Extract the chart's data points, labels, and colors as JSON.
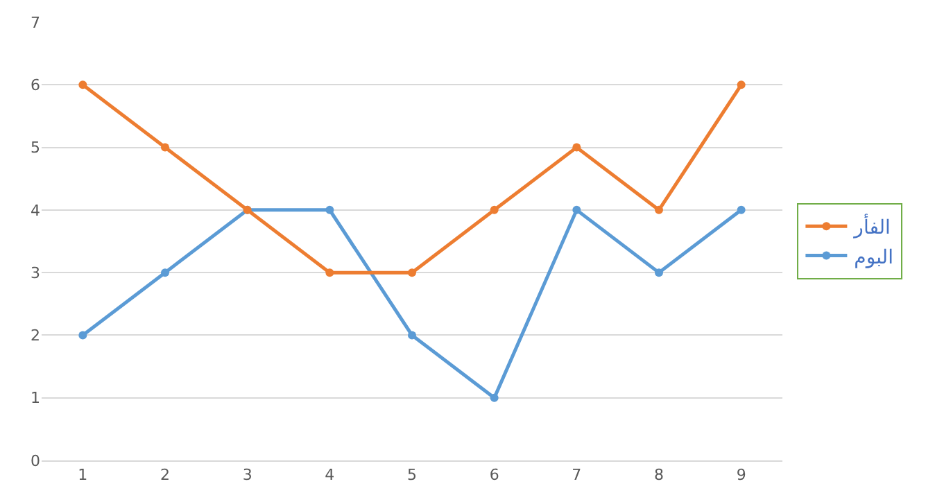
{
  "chart_data": {
    "type": "line",
    "x": [
      1,
      2,
      3,
      4,
      5,
      6,
      7,
      8,
      9
    ],
    "series": [
      {
        "name": "الفأر",
        "color": "#ed7d31",
        "values": [
          6,
          5,
          4,
          3,
          3,
          4,
          5,
          4,
          6
        ]
      },
      {
        "name": "البوم",
        "color": "#5b9bd5",
        "values": [
          2,
          3,
          4,
          4,
          2,
          1,
          4,
          3,
          4
        ]
      }
    ],
    "xlim": [
      0.5,
      9.5
    ],
    "xticks": [
      1,
      2,
      3,
      4,
      5,
      6,
      7,
      8,
      9
    ],
    "ylim": [
      0,
      7
    ],
    "yticks": [
      0,
      1,
      2,
      3,
      4,
      5,
      6,
      7
    ],
    "grid": "y",
    "legend": "right",
    "marker": "circle",
    "line_style": "solid"
  }
}
